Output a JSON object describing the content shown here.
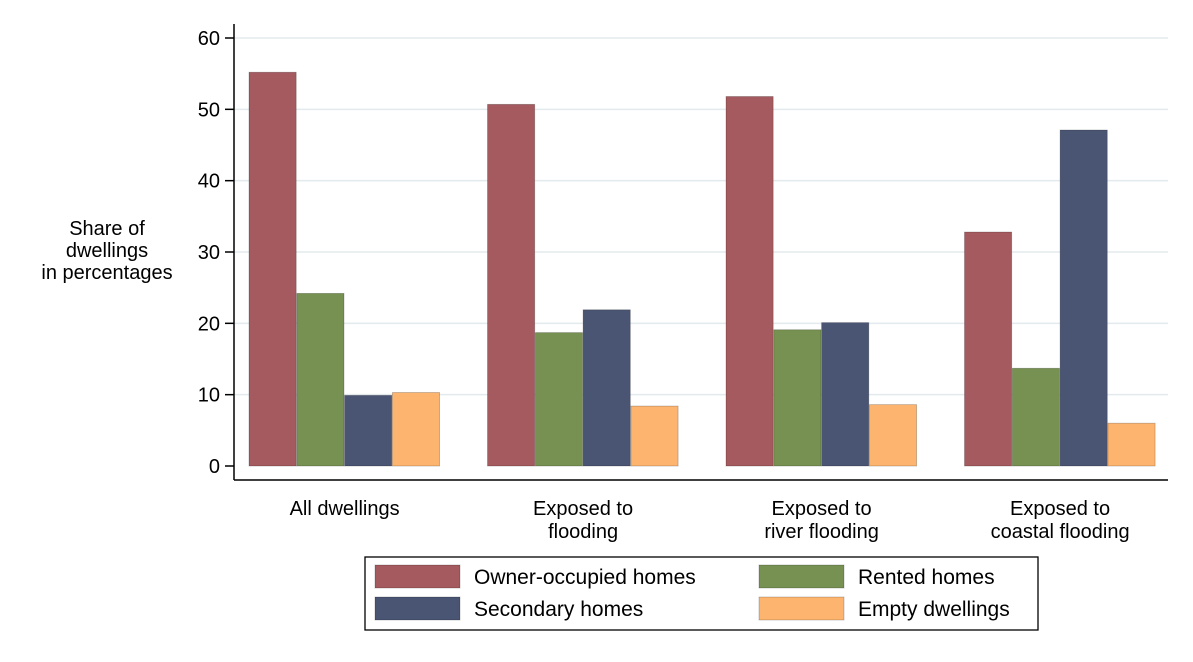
{
  "chart_data": {
    "type": "bar",
    "title": "",
    "xlabel": "",
    "ylabel": [
      "Share of",
      "dwellings",
      "in percentages"
    ],
    "ylim": [
      0,
      60
    ],
    "yticks": [
      0,
      10,
      20,
      30,
      40,
      50,
      60
    ],
    "grid": true,
    "legend_position": "bottom-center",
    "categories": [
      [
        "All dwellings"
      ],
      [
        "Exposed to",
        "flooding"
      ],
      [
        "Exposed to",
        "river flooding"
      ],
      [
        "Exposed to",
        "coastal flooding"
      ]
    ],
    "series": [
      {
        "name": "Owner-occupied homes",
        "color": "#A45A5E",
        "values": [
          55.2,
          50.7,
          51.8,
          32.8
        ]
      },
      {
        "name": "Rented homes",
        "color": "#779152",
        "values": [
          24.2,
          18.7,
          19.1,
          13.7
        ]
      },
      {
        "name": "Secondary homes",
        "color": "#4A5574",
        "values": [
          9.9,
          21.9,
          20.1,
          47.1
        ]
      },
      {
        "name": "Empty dwellings",
        "color": "#FDB46E",
        "values": [
          10.3,
          8.4,
          8.6,
          6.0
        ]
      }
    ]
  }
}
